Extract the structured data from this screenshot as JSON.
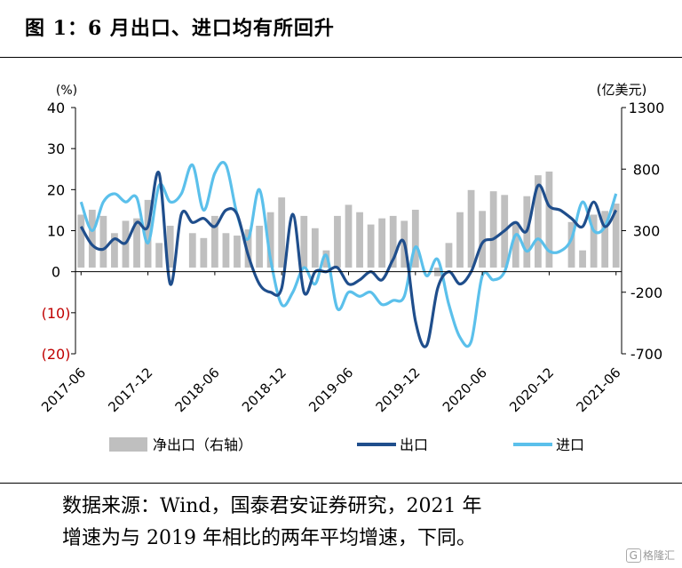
{
  "figure": {
    "title": "图 1：6 月出口、进口均有所回升"
  },
  "source_note": {
    "line1": "数据来源：Wind，国泰君安证券研究，2021 年",
    "line2": "增速为与 2019 年相比的两年平均增速，下同。"
  },
  "watermark": {
    "text": "格隆汇",
    "icon": "g-logo-icon"
  },
  "chart_data": {
    "type": "bar+line",
    "title": "6 月出口、进口均有所回升",
    "left_axis": {
      "unit_label": "(%)",
      "ticks": [
        "40",
        "30",
        "20",
        "10",
        "0",
        "(10)",
        "(20)"
      ],
      "range": [
        -20,
        40
      ]
    },
    "right_axis": {
      "unit_label": "(亿美元)",
      "ticks": [
        "1300",
        "800",
        "300",
        "-200",
        "-700"
      ],
      "range": [
        -700,
        1300
      ]
    },
    "x_ticks": [
      "2017-06",
      "2017-12",
      "2018-06",
      "2018-12",
      "2019-06",
      "2019-12",
      "2020-06",
      "2020-12",
      "2021-06"
    ],
    "months": [
      "2017-06",
      "2017-07",
      "2017-08",
      "2017-09",
      "2017-10",
      "2017-11",
      "2017-12",
      "2018-01",
      "2018-02",
      "2018-03",
      "2018-04",
      "2018-05",
      "2018-06",
      "2018-07",
      "2018-08",
      "2018-09",
      "2018-10",
      "2018-11",
      "2018-12",
      "2019-01",
      "2019-02",
      "2019-03",
      "2019-04",
      "2019-05",
      "2019-06",
      "2019-07",
      "2019-08",
      "2019-09",
      "2019-10",
      "2019-11",
      "2019-12",
      "2020-01",
      "2020-02",
      "2020-03",
      "2020-04",
      "2020-05",
      "2020-06",
      "2020-07",
      "2020-08",
      "2020-09",
      "2020-10",
      "2020-11",
      "2020-12",
      "2021-01",
      "2021-02",
      "2021-03",
      "2021-04",
      "2021-05",
      "2021-06"
    ],
    "series": [
      {
        "name": "净出口（右轴）",
        "axis": "right",
        "kind": "bar",
        "color": "#bfbfbf",
        "values": [
          430,
          470,
          420,
          280,
          380,
          400,
          550,
          200,
          340,
          0,
          280,
          240,
          420,
          280,
          260,
          310,
          340,
          450,
          570,
          0,
          420,
          320,
          140,
          420,
          510,
          450,
          350,
          400,
          420,
          380,
          470,
          0,
          -70,
          200,
          450,
          630,
          460,
          620,
          590,
          370,
          580,
          750,
          780,
          0,
          370,
          140,
          430,
          460,
          520
        ]
      },
      {
        "name": "出口",
        "axis": "left",
        "kind": "line",
        "color": "#1f4e8c",
        "values": [
          11,
          6.5,
          5.5,
          8,
          7,
          12,
          11,
          24,
          -3,
          14,
          12,
          13,
          11,
          15,
          14,
          4,
          -3,
          -5,
          -4,
          14,
          -5,
          0,
          0,
          1,
          -3,
          -2,
          0,
          -2,
          3,
          7,
          -12,
          -18,
          -4,
          0,
          -3,
          0,
          7,
          8,
          10,
          12,
          10,
          21,
          16,
          15,
          13,
          11,
          17,
          11,
          15
        ]
      },
      {
        "name": "进口",
        "axis": "left",
        "kind": "line",
        "color": "#5bc0eb",
        "values": [
          17,
          10,
          17,
          19,
          17,
          18,
          7,
          21,
          17,
          19,
          26,
          15,
          24,
          26,
          14,
          8,
          20,
          3,
          -8,
          -5,
          1,
          -3,
          4,
          -9,
          -5,
          -6,
          -5,
          -8,
          -7,
          -6,
          6,
          -1,
          3,
          -8,
          -16,
          -17,
          -1,
          -2,
          0,
          9,
          5,
          8,
          5,
          5,
          8,
          17,
          10,
          11,
          19
        ]
      }
    ],
    "legend": {
      "position": "bottom",
      "entries": [
        "净出口（右轴）",
        "出口",
        "进口"
      ]
    },
    "grid": false
  }
}
